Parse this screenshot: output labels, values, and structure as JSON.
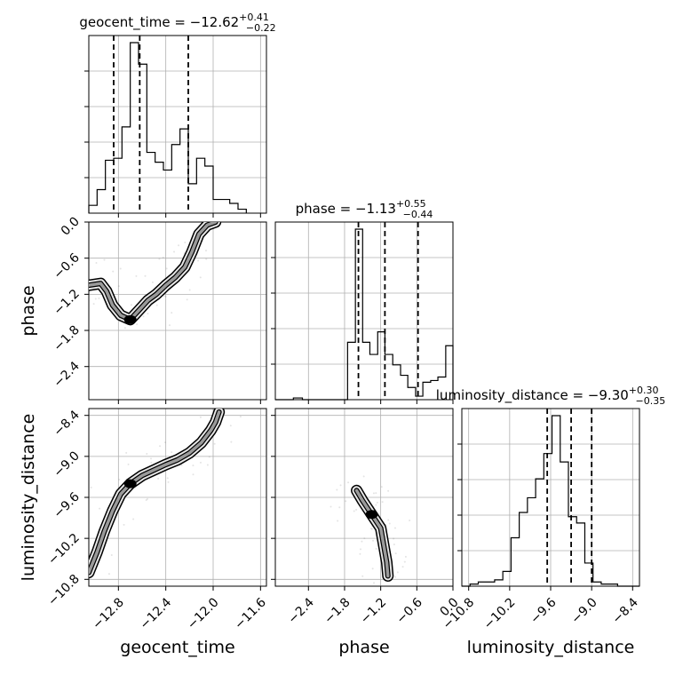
{
  "chart_data": {
    "type": "corner",
    "parameters": [
      "geocent_time",
      "phase",
      "luminosity_distance"
    ],
    "titles": [
      {
        "label": "geocent_time",
        "median": "−12.62",
        "plus": "+0.41",
        "minus": "−0.22"
      },
      {
        "label": "phase",
        "median": "−1.13",
        "plus": "+0.55",
        "minus": "−0.44"
      },
      {
        "label": "luminosity_distance",
        "median": "−9.30",
        "plus": "+0.30",
        "minus": "−0.35"
      }
    ],
    "axis_ticks": {
      "geocent_time": [
        "−12.8",
        "−12.4",
        "−12.0",
        "−11.6"
      ],
      "phase": [
        "−2.4",
        "−1.8",
        "−1.2",
        "−0.6",
        "0.0"
      ],
      "luminosity_distance": [
        "−10.8",
        "−10.2",
        "−9.6",
        "−9.0",
        "−8.4"
      ]
    },
    "axis_labels": {
      "x": [
        "geocent_time",
        "phase",
        "luminosity_distance"
      ],
      "y": [
        "phase",
        "luminosity_distance"
      ]
    },
    "ranges": {
      "geocent_time": [
        -13.05,
        -11.55
      ],
      "phase": [
        -2.95,
        0.0
      ],
      "luminosity_distance": [
        -10.9,
        -8.3
      ]
    },
    "quantiles": {
      "geocent_time": [
        -12.84,
        -12.62,
        -12.21
      ],
      "phase": [
        -1.57,
        -1.13,
        -0.58
      ],
      "luminosity_distance": [
        -9.65,
        -9.3,
        -9.0
      ]
    },
    "histograms": {
      "geocent_time": {
        "edges": [
          -13.05,
          -12.98,
          -12.91,
          -12.84,
          -12.77,
          -12.7,
          -12.63,
          -12.56,
          -12.49,
          -12.42,
          -12.35,
          -12.28,
          -12.21,
          -12.14,
          -12.07,
          -12.0,
          -11.93,
          -11.86,
          -11.79,
          -11.72
        ],
        "counts": [
          0.04,
          0.12,
          0.27,
          0.28,
          0.44,
          0.87,
          0.76,
          0.31,
          0.26,
          0.22,
          0.35,
          0.43,
          0.15,
          0.28,
          0.24,
          0.07,
          0.07,
          0.05,
          0.02
        ]
      },
      "phase": {
        "edges": [
          -2.95,
          -2.8,
          -2.65,
          -2.5,
          -2.35,
          -2.2,
          -2.05,
          -1.9,
          -1.75,
          -1.62,
          -1.5,
          -1.38,
          -1.25,
          -1.13,
          -1.0,
          -0.87,
          -0.75,
          -0.62,
          -0.5,
          -0.37,
          -0.25,
          -0.12,
          0.0
        ],
        "counts": [
          0.0,
          0.0,
          0.01,
          0.0,
          0.0,
          0.0,
          0.0,
          0.0,
          0.33,
          0.98,
          0.33,
          0.26,
          0.39,
          0.26,
          0.2,
          0.14,
          0.07,
          0.02,
          0.1,
          0.11,
          0.13,
          0.31
        ]
      },
      "luminosity_distance": {
        "edges": [
          -10.9,
          -10.78,
          -10.66,
          -10.54,
          -10.42,
          -10.3,
          -10.18,
          -10.06,
          -9.94,
          -9.82,
          -9.7,
          -9.58,
          -9.46,
          -9.34,
          -9.22,
          -9.1,
          -8.98,
          -8.86,
          -8.74,
          -8.62,
          -8.5,
          -8.38,
          -8.3
        ],
        "counts": [
          0.0,
          0.01,
          0.02,
          0.02,
          0.03,
          0.07,
          0.23,
          0.35,
          0.42,
          0.51,
          0.63,
          0.81,
          0.59,
          0.33,
          0.3,
          0.11,
          0.02,
          0.01,
          0.01,
          0.0,
          0.0,
          0.0
        ]
      }
    },
    "joint_traces": {
      "phase_vs_geocent_time": [
        [
          -13.05,
          -1.05
        ],
        [
          -12.95,
          -1.02
        ],
        [
          -12.9,
          -1.15
        ],
        [
          -12.85,
          -1.38
        ],
        [
          -12.78,
          -1.55
        ],
        [
          -12.7,
          -1.62
        ],
        [
          -12.62,
          -1.45
        ],
        [
          -12.55,
          -1.3
        ],
        [
          -12.48,
          -1.2
        ],
        [
          -12.4,
          -1.05
        ],
        [
          -12.32,
          -0.92
        ],
        [
          -12.24,
          -0.75
        ],
        [
          -12.18,
          -0.5
        ],
        [
          -12.12,
          -0.2
        ],
        [
          -12.05,
          -0.05
        ],
        [
          -11.98,
          0.0
        ]
      ],
      "luminosity_distance_vs_geocent_time": [
        [
          -13.05,
          -10.7
        ],
        [
          -12.98,
          -10.4
        ],
        [
          -12.92,
          -10.1
        ],
        [
          -12.85,
          -9.8
        ],
        [
          -12.78,
          -9.55
        ],
        [
          -12.7,
          -9.4
        ],
        [
          -12.6,
          -9.28
        ],
        [
          -12.5,
          -9.2
        ],
        [
          -12.4,
          -9.12
        ],
        [
          -12.3,
          -9.05
        ],
        [
          -12.2,
          -8.95
        ],
        [
          -12.1,
          -8.8
        ],
        [
          -12.02,
          -8.62
        ],
        [
          -11.98,
          -8.5
        ],
        [
          -11.95,
          -8.35
        ]
      ],
      "luminosity_distance_vs_phase": [
        [
          -1.6,
          -9.5
        ],
        [
          -1.5,
          -9.65
        ],
        [
          -1.35,
          -9.85
        ],
        [
          -1.2,
          -10.05
        ],
        [
          -1.15,
          -10.3
        ],
        [
          -1.1,
          -10.55
        ],
        [
          -1.08,
          -10.75
        ]
      ]
    }
  }
}
